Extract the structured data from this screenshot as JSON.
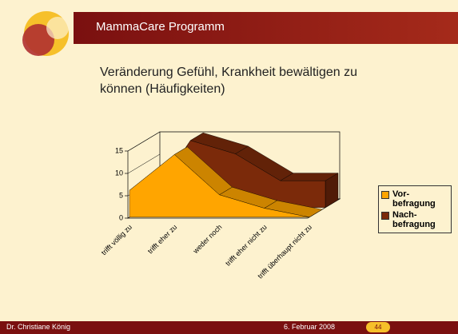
{
  "header": {
    "title": "MammaCare Programm"
  },
  "footer": {
    "author": "Dr. Christiane König",
    "date": "6. Februar 2008",
    "page": "44"
  },
  "chart_data": {
    "type": "area3d",
    "title": "Veränderung Gefühl, Krankheit bewältigen zu können (Häufigkeiten)",
    "categories": [
      "trifft völlig zu",
      "trifft eher zu",
      "weder noch",
      "trifft eher nicht zu",
      "trifft überhaupt nicht zu"
    ],
    "series": [
      {
        "name": "Vor-befragung",
        "color": "#ffa500",
        "values": [
          6,
          14,
          5,
          2,
          0
        ]
      },
      {
        "name": "Nach-befragung",
        "color": "#7b2a0a",
        "values": [
          0,
          15,
          12,
          6,
          6
        ]
      }
    ],
    "ylim": [
      0,
      15
    ],
    "yticks": [
      0,
      5,
      10,
      15
    ],
    "legend": "right"
  }
}
